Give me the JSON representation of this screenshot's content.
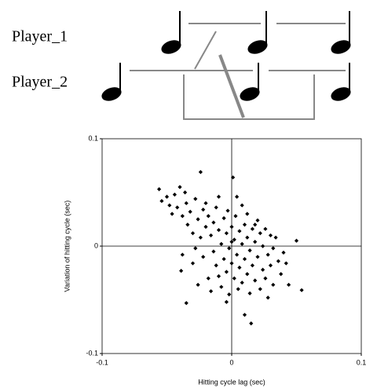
{
  "diagram": {
    "labels": [
      "Player_1",
      "Player_2"
    ]
  },
  "chart_data": {
    "type": "scatter",
    "xlabel": "Hitting cycle lag (sec)",
    "ylabel": "Variation of hitting cycle (sec)",
    "color": "#000000",
    "xlim": [
      -0.1,
      0.1
    ],
    "ylim": [
      -0.1,
      0.1
    ],
    "xticks": [
      -0.1,
      0,
      0.1
    ],
    "yticks": [
      -0.1,
      0,
      0.1
    ],
    "x": [
      -0.056,
      -0.054,
      -0.05,
      -0.048,
      -0.046,
      -0.044,
      -0.042,
      -0.04,
      -0.038,
      -0.036,
      -0.035,
      -0.034,
      -0.032,
      -0.03,
      -0.039,
      -0.038,
      -0.035,
      -0.028,
      -0.026,
      -0.024,
      -0.024,
      -0.022,
      -0.022,
      -0.02,
      -0.02,
      -0.018,
      -0.018,
      -0.016,
      -0.016,
      -0.014,
      -0.014,
      -0.012,
      -0.012,
      -0.01,
      -0.01,
      -0.01,
      -0.008,
      -0.008,
      -0.006,
      -0.006,
      -0.004,
      -0.004,
      -0.003,
      -0.002,
      -0.002,
      0,
      0,
      0.001,
      0.002,
      0.002,
      0.003,
      0.004,
      0.004,
      0.005,
      0.006,
      0.006,
      0.008,
      0.008,
      0.008,
      0.01,
      0.01,
      0.01,
      0.012,
      0.012,
      0.014,
      0.014,
      0.015,
      0.016,
      0.016,
      0.018,
      0.018,
      0.02,
      0.02,
      0.022,
      0.022,
      0.024,
      0.024,
      0.026,
      0.026,
      0.028,
      0.028,
      0.03,
      0.03,
      0.032,
      0.032,
      0.034,
      0.036,
      0.038,
      0.04,
      0.042,
      0.044,
      0.05,
      0.054,
      -0.028,
      -0.03,
      -0.026,
      0.012,
      0.018,
      -0.004,
      0
    ],
    "values": [
      0.053,
      0.042,
      0.046,
      0.038,
      0.03,
      0.048,
      0.036,
      0.055,
      0.028,
      0.05,
      0.04,
      0.02,
      0.032,
      0.012,
      -0.023,
      -0.008,
      -0.053,
      0.044,
      0.025,
      0.069,
      0.008,
      0.034,
      -0.01,
      0.018,
      0.04,
      -0.03,
      0.028,
      0.01,
      -0.042,
      0.022,
      -0.005,
      0.036,
      -0.018,
      0.015,
      -0.028,
      0.046,
      0.002,
      -0.038,
      0.026,
      -0.012,
      0.012,
      -0.024,
      0.033,
      -0.002,
      -0.045,
      0.018,
      -0.016,
      0.064,
      0.006,
      -0.03,
      0.028,
      -0.008,
      0.046,
      -0.04,
      0.014,
      -0.02,
      0.002,
      -0.034,
      0.038,
      -0.012,
      -0.064,
      0.02,
      -0.026,
      0.008,
      -0.044,
      -0.004,
      -0.072,
      0.016,
      -0.018,
      -0.032,
      0.004,
      0.024,
      -0.01,
      -0.04,
      0.012,
      -0.022,
      0,
      0.016,
      -0.03,
      -0.008,
      -0.048,
      0.01,
      -0.018,
      -0.002,
      -0.036,
      0.008,
      -0.014,
      -0.026,
      -0.006,
      -0.016,
      -0.036,
      0.005,
      -0.041,
      -0.002,
      -0.016,
      -0.036,
      0.03,
      0.02,
      -0.052,
      0.004
    ]
  }
}
